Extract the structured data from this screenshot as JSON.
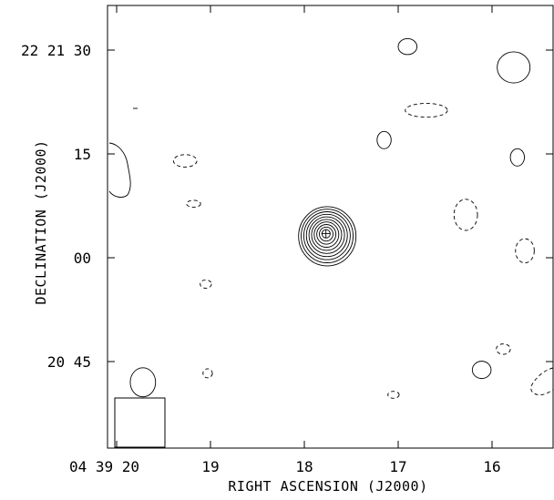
{
  "chart_data": {
    "type": "contour",
    "title": "",
    "xlabel": "RIGHT ASCENSION (J2000)",
    "ylabel": "DECLINATION (J2000)",
    "x_ticks": [
      {
        "value": "04 39 20",
        "label": "04 39 20"
      },
      {
        "value": "19",
        "label": "19"
      },
      {
        "value": "18",
        "label": "18"
      },
      {
        "value": "17",
        "label": "17"
      },
      {
        "value": "16",
        "label": "16"
      }
    ],
    "y_ticks": [
      {
        "value": "22 21 30",
        "label": "22 21 30"
      },
      {
        "value": "15",
        "label": "15"
      },
      {
        "value": "00",
        "label": "00"
      },
      {
        "value": "20 45",
        "label": "20 45"
      }
    ],
    "source": {
      "ra_s": 17.77,
      "dec_s": 63.5,
      "n_levels": 10
    },
    "positive_contours": [
      {
        "ra_s": 16.9,
        "dec_s": 90.5,
        "w": 0.2,
        "h": 2.3
      },
      {
        "ra_s": 15.77,
        "dec_s": 87.5,
        "w": 0.35,
        "h": 4.5
      },
      {
        "ra_s": 17.15,
        "dec_s": 77.0,
        "w": 0.15,
        "h": 2.5
      },
      {
        "ra_s": 15.73,
        "dec_s": 74.5,
        "w": 0.15,
        "h": 2.5
      },
      {
        "ra_s": 16.11,
        "dec_s": 43.8,
        "w": 0.2,
        "h": 2.5
      }
    ],
    "negative_contours": [
      {
        "ra_s": 16.7,
        "dec_s": 81.3,
        "w": 0.45,
        "h": 2.0
      },
      {
        "ra_s": 19.27,
        "dec_s": 74.0,
        "w": 0.25,
        "h": 1.8
      },
      {
        "ra_s": 19.18,
        "dec_s": 67.8,
        "w": 0.15,
        "h": 1.0
      },
      {
        "ra_s": 16.28,
        "dec_s": 66.2,
        "w": 0.25,
        "h": 4.5
      },
      {
        "ra_s": 15.65,
        "dec_s": 61.0,
        "w": 0.2,
        "h": 3.5
      },
      {
        "ra_s": 19.05,
        "dec_s": 56.2,
        "w": 0.12,
        "h": 1.2
      },
      {
        "ra_s": 15.88,
        "dec_s": 46.8,
        "w": 0.15,
        "h": 1.5
      },
      {
        "ra_s": 19.03,
        "dec_s": 43.3,
        "w": 0.1,
        "h": 1.3
      },
      {
        "ra_s": 17.05,
        "dec_s": 40.2,
        "w": 0.12,
        "h": 1.0
      }
    ],
    "beam": {
      "ra_s": 19.72,
      "dec_s": 42.0,
      "w": 0.27,
      "h": 4.2
    }
  }
}
